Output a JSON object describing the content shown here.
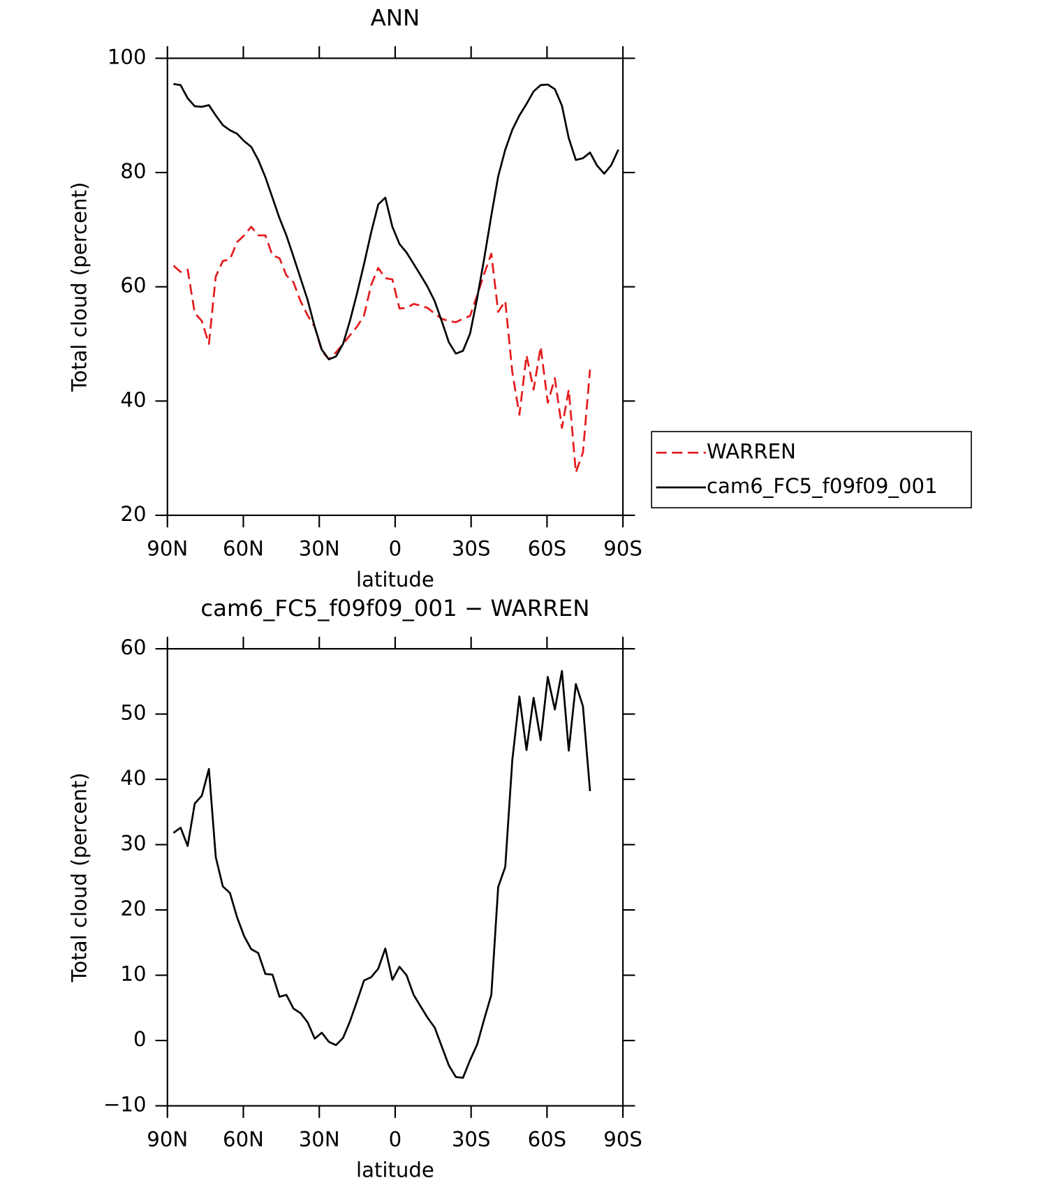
{
  "chart_data": [
    {
      "type": "line",
      "title": "ANN",
      "xlabel": "latitude",
      "ylabel": "Total cloud (percent)",
      "x": [
        87.6,
        84.8,
        82.0,
        79.2,
        76.4,
        73.6,
        70.9,
        68.1,
        65.3,
        62.5,
        59.7,
        56.9,
        54.1,
        51.3,
        48.5,
        45.7,
        43.0,
        40.2,
        37.4,
        34.6,
        31.8,
        29.0,
        26.2,
        23.4,
        20.6,
        17.9,
        15.1,
        12.3,
        9.5,
        6.7,
        3.9,
        1.1,
        -1.7,
        -4.5,
        -7.3,
        -10.1,
        -12.8,
        -15.6,
        -18.4,
        -21.2,
        -24.0,
        -26.8,
        -29.6,
        -32.4,
        -35.2,
        -38.0,
        -40.7,
        -43.5,
        -46.3,
        -49.1,
        -51.9,
        -54.7,
        -57.5,
        -60.3,
        -63.1,
        -65.9,
        -68.6,
        -71.4,
        -74.2,
        -77.0,
        -79.8,
        -82.6,
        -85.4,
        -88.2
      ],
      "series": [
        {
          "name": "WARREN",
          "color": "#e41a1c",
          "dashed": true,
          "values": [
            63.7,
            62.6,
            63,
            55.4,
            54,
            50,
            61.8,
            64.5,
            64.8,
            67.8,
            69,
            70.5,
            69,
            69,
            65.5,
            65,
            62,
            60.8,
            57.5,
            55,
            53,
            48.8,
            47.3,
            48.5,
            50,
            51.5,
            53,
            55,
            60.3,
            63.3,
            61.5,
            61.3,
            56.2,
            56.3,
            57,
            56.7,
            56.3,
            55.3,
            54.4,
            54,
            53.8,
            54.4,
            54.9,
            58.5,
            62.3,
            65.8,
            55.6,
            57.5,
            45,
            37.6,
            48,
            42,
            49.5,
            39.7,
            44,
            35.3,
            42,
            27.5,
            31,
            45.5,
            null,
            null,
            null,
            null
          ]
        },
        {
          "name": "cam6_FC5_f09f09_001",
          "color": "#000000",
          "dashed": false,
          "values": [
            95.5,
            95.3,
            93,
            91.6,
            91.5,
            91.8,
            90,
            88.3,
            87.4,
            86.8,
            85.5,
            84.5,
            82.2,
            79.2,
            75.6,
            72,
            69,
            65.3,
            61.5,
            57.7,
            53,
            49,
            47.3,
            47.8,
            50,
            54,
            58.8,
            64,
            69.5,
            74.4,
            75.6,
            70.5,
            67.5,
            66,
            64,
            62,
            60,
            57.5,
            54,
            50.3,
            48.3,
            48.8,
            51.8,
            58,
            65,
            72.5,
            79.3,
            84,
            87.5,
            90,
            92,
            94.2,
            95.3,
            95.4,
            94.6,
            91.7,
            86,
            82.2,
            82.5,
            83.5,
            81.2,
            79.8,
            81.3,
            84
          ]
        }
      ],
      "xlim": [
        90,
        -90
      ],
      "xticks": [
        {
          "value": 90,
          "label": "90N"
        },
        {
          "value": 60,
          "label": "60N"
        },
        {
          "value": 30,
          "label": "30N"
        },
        0,
        {
          "value": -30,
          "label": "30S"
        },
        {
          "value": -60,
          "label": "60S"
        },
        {
          "value": -90,
          "label": "90S"
        }
      ],
      "ylim": [
        20,
        100
      ],
      "yticks": [
        20,
        40,
        60,
        80,
        100
      ],
      "legend": "right"
    },
    {
      "type": "line",
      "title": "cam6_FC5_f09f09_001 − WARREN",
      "xlabel": "latitude",
      "ylabel": "Total cloud (percent)",
      "x": [
        87.6,
        84.8,
        82.0,
        79.2,
        76.4,
        73.6,
        70.9,
        68.1,
        65.3,
        62.5,
        59.7,
        56.9,
        54.1,
        51.3,
        48.5,
        45.7,
        43.0,
        40.2,
        37.4,
        34.6,
        31.8,
        29.0,
        26.2,
        23.4,
        20.6,
        17.9,
        15.1,
        12.3,
        9.5,
        6.7,
        3.9,
        1.1,
        -1.7,
        -4.5,
        -7.3,
        -10.1,
        -12.8,
        -15.6,
        -18.4,
        -21.2,
        -24.0,
        -26.8,
        -29.6,
        -32.4,
        -35.2,
        -38.0,
        -40.7,
        -43.5,
        -46.3,
        -49.1,
        -51.9,
        -54.7,
        -57.5,
        -60.3,
        -63.1,
        -65.9,
        -68.6,
        -71.4,
        -74.2,
        -77.0
      ],
      "series": [
        {
          "color": "#000000",
          "dashed": false,
          "values": [
            31.8,
            32.6,
            29.8,
            36.3,
            37.5,
            41.6,
            28.1,
            23.6,
            22.6,
            18.9,
            16,
            14,
            13.4,
            10.2,
            10.1,
            6.7,
            7,
            4.9,
            4.2,
            2.8,
            0.3,
            1.2,
            -0.2,
            -0.7,
            0.4,
            2.9,
            6,
            9.2,
            9.7,
            11,
            14.1,
            9.3,
            11.3,
            10,
            7,
            5.2,
            3.5,
            2,
            -0.9,
            -3.8,
            -5.6,
            -5.7,
            -3,
            -0.6,
            3.3,
            7,
            23.5,
            26.6,
            43,
            52.7,
            44.5,
            52.5,
            46,
            55.7,
            50.7,
            56.6,
            44.4,
            54.6,
            51.2,
            38.2
          ]
        }
      ],
      "xlim": [
        90,
        -90
      ],
      "xticks": [
        {
          "value": 90,
          "label": "90N"
        },
        {
          "value": 60,
          "label": "60N"
        },
        {
          "value": 30,
          "label": "30N"
        },
        0,
        {
          "value": -30,
          "label": "30S"
        },
        {
          "value": -60,
          "label": "60S"
        },
        {
          "value": -90,
          "label": "90S"
        }
      ],
      "ylim": [
        -10,
        60
      ],
      "yticks": [
        {
          "value": -10,
          "label": "−10"
        },
        0,
        10,
        20,
        30,
        40,
        50,
        60
      ]
    }
  ]
}
